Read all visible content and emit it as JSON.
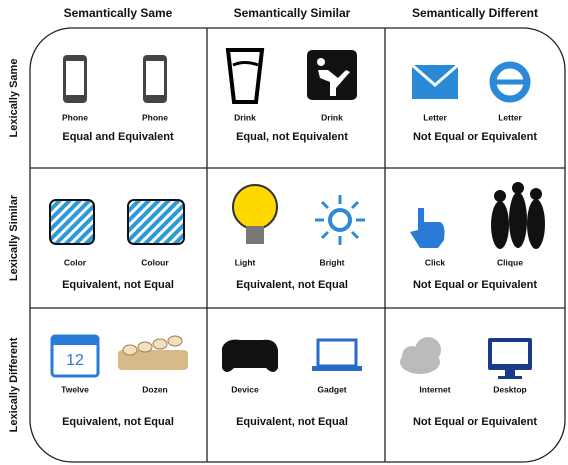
{
  "columns": [
    "Semantically Same",
    "Semantically Similar",
    "Semantically Different"
  ],
  "rows": [
    {
      "label": "Lexically Same",
      "cells": [
        {
          "items": [
            "Phone",
            "Phone"
          ],
          "caption": "Equal and Equivalent"
        },
        {
          "items": [
            "Drink",
            "Drink"
          ],
          "caption": "Equal, not Equivalent"
        },
        {
          "items": [
            "Letter",
            "Letter"
          ],
          "caption": "Not Equal or Equivalent"
        }
      ]
    },
    {
      "label": "Lexically Similar",
      "cells": [
        {
          "items": [
            "Color",
            "Colour"
          ],
          "caption": "Equivalent, not Equal"
        },
        {
          "items": [
            "Light",
            "Bright"
          ],
          "caption": "Equivalent, not Equal"
        },
        {
          "items": [
            "Click",
            "Clique"
          ],
          "caption": "Not Equal or Equivalent"
        }
      ]
    },
    {
      "label": "Lexically Different",
      "cells": [
        {
          "items": [
            "Twelve",
            "Dozen"
          ],
          "caption": "Equivalent, not Equal",
          "icon_text": "12"
        },
        {
          "items": [
            "Device",
            "Gadget"
          ],
          "caption": "Equivalent, not Equal"
        },
        {
          "items": [
            "Internet",
            "Desktop"
          ],
          "caption": "Not Equal or Equivalent"
        }
      ]
    }
  ]
}
